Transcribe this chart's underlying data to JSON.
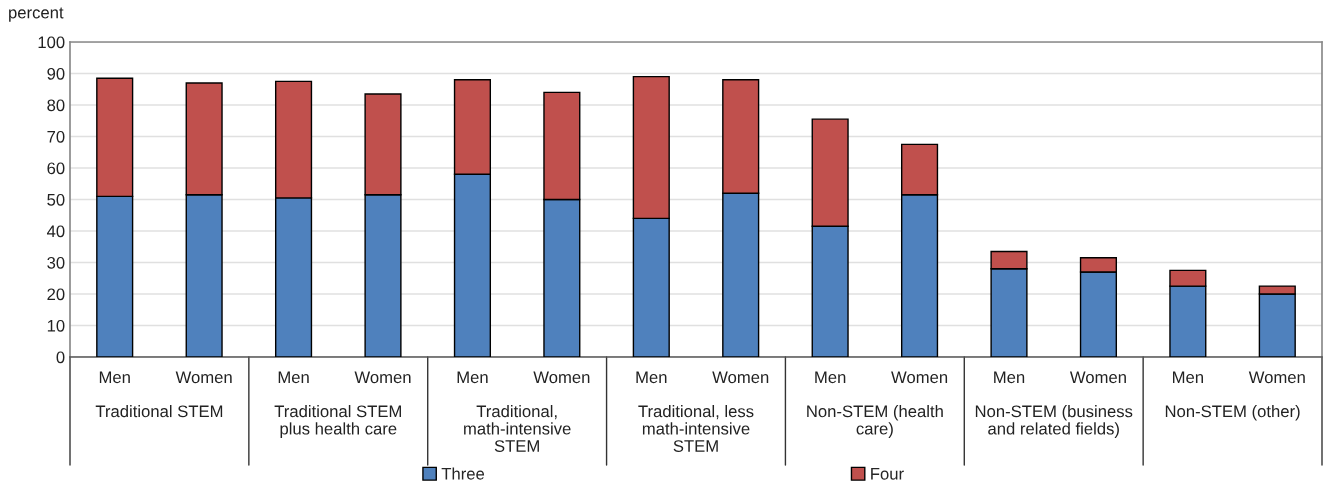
{
  "chart_data": {
    "type": "bar",
    "stacked": true,
    "ylabel": "percent",
    "categories": [
      "Men",
      "Women",
      "Men",
      "Women",
      "Men",
      "Women",
      "Men",
      "Women",
      "Men",
      "Women",
      "Men",
      "Women",
      "Men",
      "Women"
    ],
    "annotations": [
      "Traditional STEM",
      "Traditional STEM plus health care",
      "Traditional, math-intensive STEM",
      "Traditional, less math-intensive STEM",
      "Non-STEM (health care)",
      "Non-STEM (business and related fields)",
      "Non-STEM (other)"
    ],
    "series": [
      {
        "name": "Three",
        "color": "#4f81bd",
        "values": [
          51,
          51.5,
          50.5,
          51.5,
          58,
          50,
          44,
          52,
          41.5,
          51.5,
          28,
          27,
          22.5,
          20
        ]
      },
      {
        "name": "Four",
        "color": "#c0504d",
        "values": [
          37.5,
          35.5,
          37,
          32,
          30,
          34,
          45,
          36,
          34,
          16,
          5.5,
          4.5,
          5,
          2.5
        ]
      }
    ],
    "ylim": [
      0,
      100
    ],
    "yticks": [
      0,
      10,
      20,
      30,
      40,
      50,
      60,
      70,
      80,
      90,
      100
    ],
    "grid": "y",
    "legend": "bottom"
  }
}
